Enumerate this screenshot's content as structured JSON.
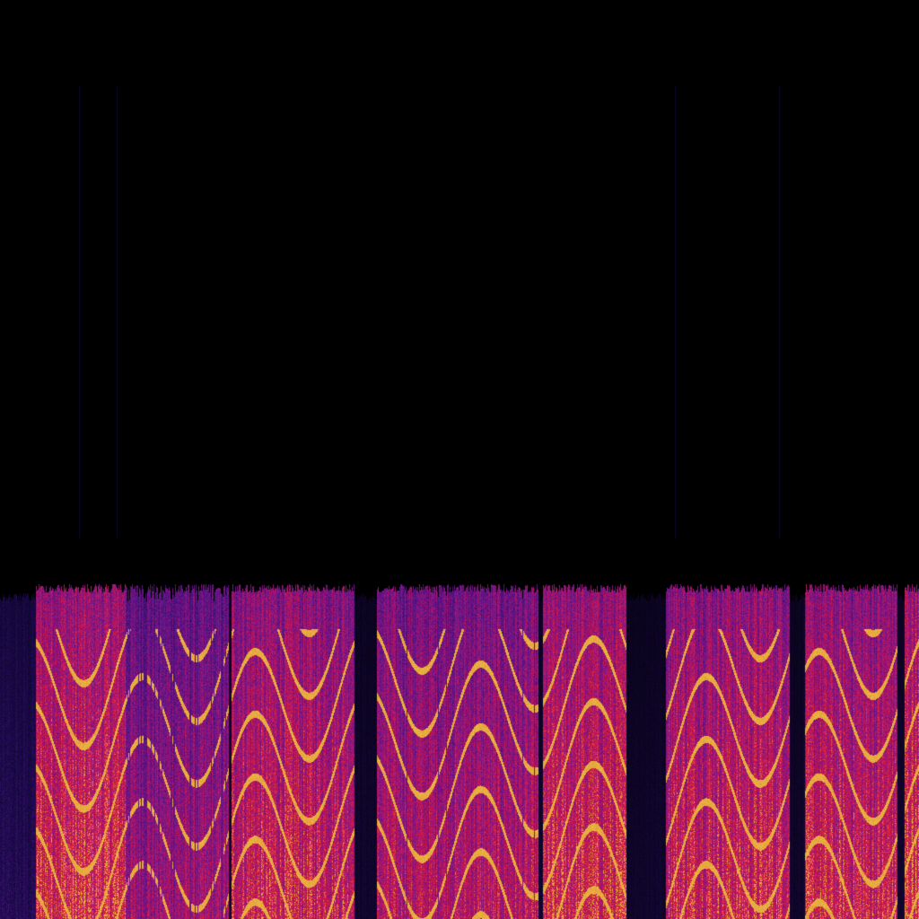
{
  "spectrogram": {
    "colormap": "magma",
    "colors": {
      "background": "#000000",
      "low": "#1a0a4a",
      "mid": "#7a1a8a",
      "high": "#e0203a",
      "peak": "#e8c040"
    },
    "axes_shown": false,
    "labels_shown": false
  }
}
